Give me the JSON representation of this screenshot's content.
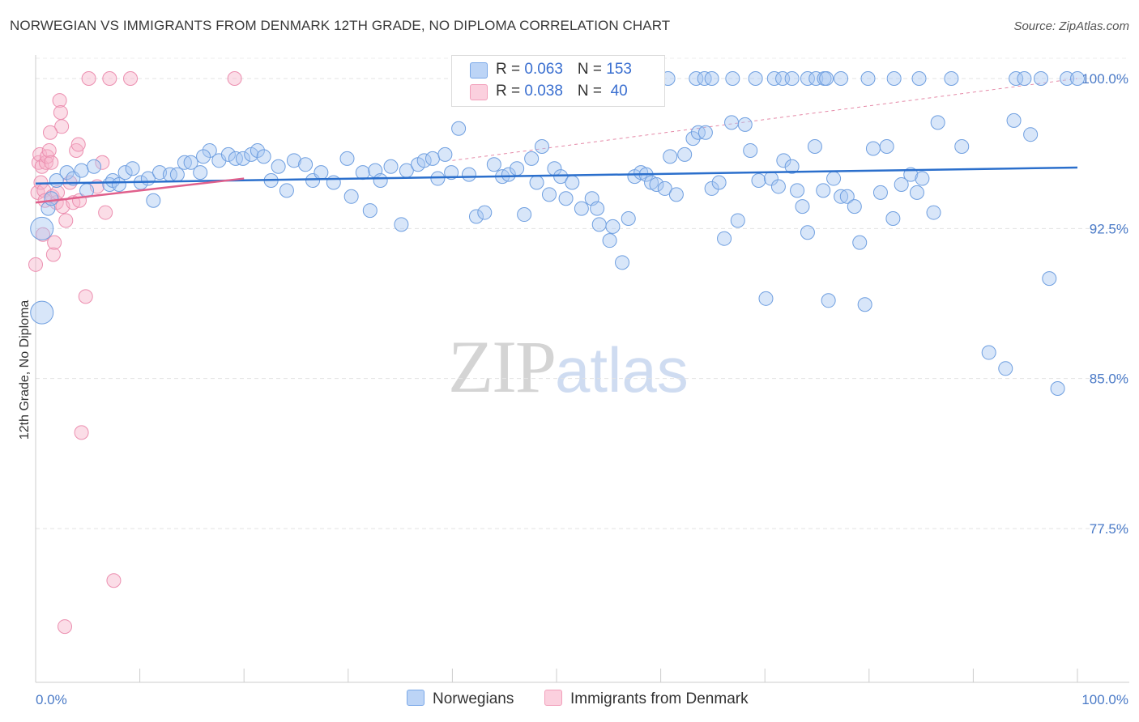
{
  "title": "NORWEGIAN VS IMMIGRANTS FROM DENMARK 12TH GRADE, NO DIPLOMA CORRELATION CHART",
  "source": "Source: ZipAtlas.com",
  "watermark": {
    "zip": "ZIP",
    "atlas": "atlas"
  },
  "legend": {
    "rows": [
      {
        "r_label": "R = ",
        "r_value": "0.063",
        "n_label": "N = ",
        "n_value": "153"
      },
      {
        "r_label": "R = ",
        "r_value": "0.038",
        "n_label": "N = ",
        "n_value": " 40"
      }
    ]
  },
  "chart_data": {
    "type": "scatter",
    "title": "NORWEGIAN VS IMMIGRANTS FROM DENMARK 12TH GRADE, NO DIPLOMA CORRELATION CHART",
    "xlabel": "",
    "ylabel": "12th Grade, No Diploma",
    "x_tick_labels": [
      "0.0%",
      "100.0%"
    ],
    "y_tick_labels": [
      "100.0%",
      "92.5%",
      "85.0%",
      "77.5%"
    ],
    "y_ticks": [
      100.0,
      92.5,
      85.0,
      77.5
    ],
    "xlim": [
      0,
      100
    ],
    "ylim": [
      70.7,
      101.1
    ],
    "grid": true,
    "legend_position": "bottom",
    "colors": {
      "norwegians": "#7aa8e8",
      "denmark": "#f2a0bb",
      "norwegians_line": "#2b6fcc",
      "denmark_line": "#e0608c"
    },
    "series": [
      {
        "name": "Norwegians",
        "r": 0.063,
        "n": 153,
        "trend": {
          "x": [
            0,
            100
          ],
          "y": [
            94.75,
            95.55
          ]
        },
        "points": [
          [
            0.6,
            92.5
          ],
          [
            0.6,
            88.3
          ],
          [
            1.2,
            93.5
          ],
          [
            1.5,
            94.0
          ],
          [
            2.0,
            94.9
          ],
          [
            3.0,
            95.3
          ],
          [
            3.6,
            95.0
          ],
          [
            4.4,
            95.4
          ],
          [
            4.9,
            94.4
          ],
          [
            5.6,
            95.6
          ],
          [
            7.1,
            94.7
          ],
          [
            7.4,
            94.9
          ],
          [
            8.0,
            94.7
          ],
          [
            8.6,
            95.3
          ],
          [
            9.3,
            95.5
          ],
          [
            10.1,
            94.8
          ],
          [
            10.8,
            95.0
          ],
          [
            11.3,
            93.9
          ],
          [
            11.9,
            95.3
          ],
          [
            12.9,
            95.2
          ],
          [
            13.6,
            95.2
          ],
          [
            14.3,
            95.8
          ],
          [
            14.9,
            95.8
          ],
          [
            15.8,
            95.3
          ],
          [
            16.7,
            96.4
          ],
          [
            16.1,
            96.1
          ],
          [
            17.6,
            95.9
          ],
          [
            18.5,
            96.2
          ],
          [
            19.2,
            96.0
          ],
          [
            19.9,
            96.0
          ],
          [
            20.7,
            96.2
          ],
          [
            21.3,
            96.4
          ],
          [
            21.9,
            96.1
          ],
          [
            22.6,
            94.9
          ],
          [
            23.3,
            95.6
          ],
          [
            24.1,
            94.4
          ],
          [
            24.8,
            95.9
          ],
          [
            25.9,
            95.7
          ],
          [
            26.6,
            94.9
          ],
          [
            27.4,
            95.3
          ],
          [
            28.6,
            94.8
          ],
          [
            29.9,
            96.0
          ],
          [
            30.3,
            94.1
          ],
          [
            31.4,
            95.3
          ],
          [
            32.1,
            93.4
          ],
          [
            32.6,
            95.4
          ],
          [
            33.1,
            94.9
          ],
          [
            34.1,
            95.6
          ],
          [
            35.1,
            92.7
          ],
          [
            35.6,
            95.4
          ],
          [
            36.7,
            95.7
          ],
          [
            37.3,
            95.9
          ],
          [
            38.1,
            96.0
          ],
          [
            38.6,
            95.0
          ],
          [
            39.3,
            96.2
          ],
          [
            39.9,
            95.3
          ],
          [
            40.6,
            97.5
          ],
          [
            41.6,
            95.2
          ],
          [
            42.3,
            93.1
          ],
          [
            43.1,
            93.3
          ],
          [
            44.0,
            95.7
          ],
          [
            44.8,
            95.1
          ],
          [
            45.4,
            95.2
          ],
          [
            46.2,
            95.5
          ],
          [
            46.9,
            93.2
          ],
          [
            47.6,
            96.0
          ],
          [
            48.1,
            94.8
          ],
          [
            48.6,
            96.6
          ],
          [
            49.3,
            94.2
          ],
          [
            49.8,
            95.5
          ],
          [
            50.4,
            95.1
          ],
          [
            50.9,
            94.0
          ],
          [
            51.5,
            94.8
          ],
          [
            52.4,
            93.5
          ],
          [
            53.4,
            94.0
          ],
          [
            53.9,
            93.5
          ],
          [
            54.1,
            92.7
          ],
          [
            55.1,
            91.9
          ],
          [
            55.4,
            92.6
          ],
          [
            56.3,
            90.8
          ],
          [
            56.9,
            93.0
          ],
          [
            57.5,
            95.1
          ],
          [
            58.1,
            95.3
          ],
          [
            58.6,
            95.2
          ],
          [
            59.1,
            94.8
          ],
          [
            59.6,
            94.7
          ],
          [
            60.4,
            94.5
          ],
          [
            60.9,
            96.1
          ],
          [
            61.5,
            94.2
          ],
          [
            62.3,
            96.2
          ],
          [
            63.1,
            97.0
          ],
          [
            63.6,
            97.3
          ],
          [
            64.3,
            97.3
          ],
          [
            64.9,
            94.5
          ],
          [
            65.6,
            94.8
          ],
          [
            66.1,
            92.0
          ],
          [
            66.8,
            97.8
          ],
          [
            67.4,
            92.9
          ],
          [
            68.1,
            97.7
          ],
          [
            68.6,
            96.4
          ],
          [
            69.4,
            94.9
          ],
          [
            70.1,
            89.0
          ],
          [
            70.6,
            95.0
          ],
          [
            71.3,
            94.6
          ],
          [
            71.8,
            95.9
          ],
          [
            72.6,
            95.6
          ],
          [
            73.1,
            94.4
          ],
          [
            73.6,
            93.6
          ],
          [
            74.1,
            92.3
          ],
          [
            74.8,
            96.6
          ],
          [
            75.6,
            94.4
          ],
          [
            76.1,
            88.9
          ],
          [
            76.6,
            95.0
          ],
          [
            77.3,
            94.1
          ],
          [
            77.9,
            94.1
          ],
          [
            78.6,
            93.6
          ],
          [
            79.1,
            91.8
          ],
          [
            79.6,
            88.7
          ],
          [
            80.4,
            96.5
          ],
          [
            81.1,
            94.3
          ],
          [
            81.7,
            96.6
          ],
          [
            82.3,
            93.0
          ],
          [
            83.1,
            94.7
          ],
          [
            84.0,
            95.2
          ],
          [
            84.6,
            94.3
          ],
          [
            85.1,
            95.0
          ],
          [
            86.2,
            93.3
          ],
          [
            86.6,
            97.8
          ],
          [
            88.9,
            96.6
          ],
          [
            91.5,
            86.3
          ],
          [
            93.1,
            85.5
          ],
          [
            93.9,
            97.9
          ],
          [
            95.5,
            97.2
          ],
          [
            97.3,
            90.0
          ],
          [
            98.1,
            84.5
          ],
          [
            63.4,
            100.0
          ],
          [
            64.2,
            100.0
          ],
          [
            64.9,
            100.0
          ],
          [
            66.9,
            100.0
          ],
          [
            69.1,
            100.0
          ],
          [
            70.9,
            100.0
          ],
          [
            71.7,
            100.0
          ],
          [
            72.6,
            100.0
          ],
          [
            74.1,
            100.0
          ],
          [
            74.9,
            100.0
          ],
          [
            75.7,
            100.0
          ],
          [
            77.3,
            100.0
          ],
          [
            79.9,
            100.0
          ],
          [
            82.4,
            100.0
          ],
          [
            84.8,
            100.0
          ],
          [
            94.1,
            100.0
          ],
          [
            94.9,
            100.0
          ],
          [
            96.5,
            100.0
          ],
          [
            99.0,
            100.0
          ],
          [
            100.0,
            100.0
          ],
          [
            87.9,
            100.0
          ],
          [
            75.9,
            100.0
          ],
          [
            60.7,
            100.0
          ]
        ]
      },
      {
        "name": "Immigrants from Denmark",
        "r": 0.038,
        "n": 40,
        "trend": {
          "x": [
            0,
            20
          ],
          "y": [
            93.8,
            95.0
          ]
        },
        "points": [
          [
            0.0,
            90.7
          ],
          [
            0.2,
            94.3
          ],
          [
            0.3,
            95.8
          ],
          [
            0.4,
            96.2
          ],
          [
            0.5,
            94.8
          ],
          [
            0.6,
            95.6
          ],
          [
            0.7,
            92.2
          ],
          [
            0.8,
            94.4
          ],
          [
            1.0,
            95.8
          ],
          [
            1.1,
            96.1
          ],
          [
            1.3,
            96.4
          ],
          [
            1.5,
            95.8
          ],
          [
            1.6,
            94.1
          ],
          [
            1.7,
            91.2
          ],
          [
            1.8,
            91.8
          ],
          [
            2.0,
            93.8
          ],
          [
            2.1,
            94.3
          ],
          [
            2.3,
            98.9
          ],
          [
            2.4,
            98.3
          ],
          [
            2.5,
            97.6
          ],
          [
            2.6,
            93.6
          ],
          [
            2.9,
            92.9
          ],
          [
            3.3,
            94.8
          ],
          [
            3.6,
            93.8
          ],
          [
            3.9,
            96.4
          ],
          [
            4.1,
            96.7
          ],
          [
            4.2,
            93.9
          ],
          [
            4.4,
            82.3
          ],
          [
            4.8,
            89.1
          ],
          [
            5.1,
            100.0
          ],
          [
            5.9,
            94.6
          ],
          [
            6.4,
            95.8
          ],
          [
            6.7,
            93.3
          ],
          [
            7.1,
            100.0
          ],
          [
            7.5,
            74.9
          ],
          [
            9.1,
            100.0
          ],
          [
            19.1,
            100.0
          ],
          [
            2.8,
            72.6
          ],
          [
            1.4,
            97.3
          ],
          [
            0.9,
            93.9
          ]
        ]
      }
    ],
    "dashed_line": {
      "from": [
        40,
        95.9
      ],
      "to": [
        100,
        100.0
      ]
    }
  }
}
